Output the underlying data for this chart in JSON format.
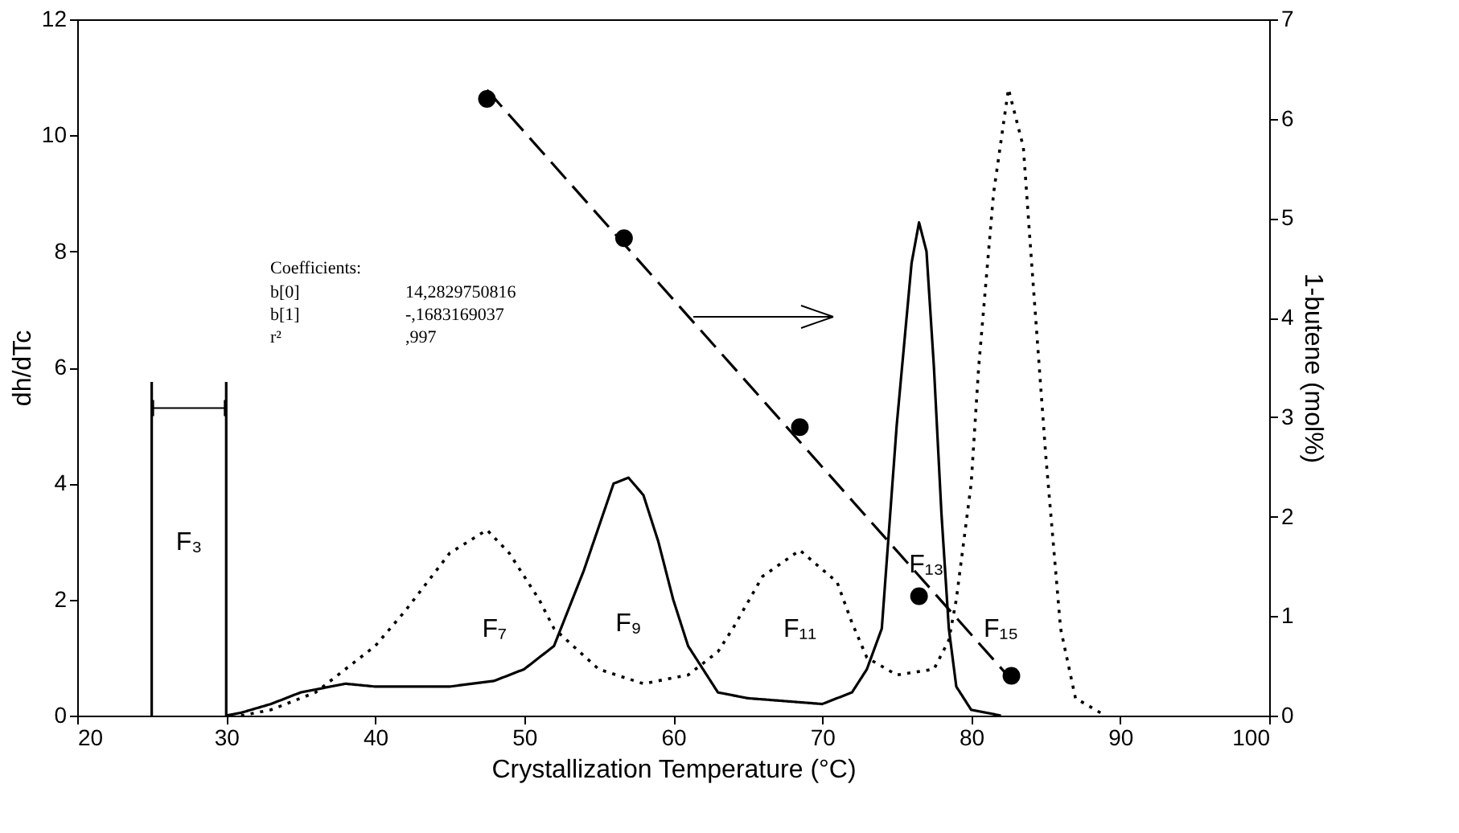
{
  "chart_data": {
    "type": "line",
    "xlabel": "Crystallization Temperature (°C)",
    "ylabel": "dh/dTc",
    "y2label": "1-butene (mol%)",
    "xlim": [
      20,
      100
    ],
    "xticks": [
      20,
      30,
      40,
      50,
      60,
      70,
      80,
      90,
      100
    ],
    "ylim": [
      0,
      12
    ],
    "yticks": [
      0,
      2,
      4,
      6,
      8,
      10,
      12
    ],
    "y2lim": [
      0,
      7
    ],
    "y2ticks": [
      0,
      1,
      2,
      3,
      4,
      5,
      6,
      7
    ],
    "grid": false,
    "series": [
      {
        "color": "#000000",
        "line_style": "solid",
        "marker": "none",
        "x": [
          25,
          25,
          null,
          30,
          30,
          31,
          33,
          35,
          38,
          40,
          45,
          48,
          50,
          52,
          54,
          56,
          57,
          58,
          59,
          60,
          61,
          63,
          65,
          70,
          72,
          73,
          74,
          75,
          76,
          76.5,
          77,
          77.5,
          78,
          78.5,
          79,
          80,
          82
        ],
        "values": [
          0,
          5.75,
          null,
          5.75,
          0,
          0.05,
          0.2,
          0.4,
          0.55,
          0.5,
          0.5,
          0.6,
          0.8,
          1.2,
          2.5,
          4.0,
          4.1,
          3.8,
          3.0,
          2.0,
          1.2,
          0.4,
          0.3,
          0.2,
          0.4,
          0.8,
          1.5,
          5.0,
          7.8,
          8.5,
          8.0,
          6.0,
          3.5,
          1.5,
          0.5,
          0.1,
          0
        ]
      },
      {
        "color": "#000000",
        "line_style": "dotted",
        "marker": "none",
        "x": [
          31,
          33,
          36,
          38,
          40,
          42,
          45,
          47.5,
          49,
          51,
          52,
          55,
          58,
          61,
          63,
          64,
          66,
          68.5,
          71,
          72,
          73,
          75,
          77.5,
          78.5,
          79,
          80,
          80.5,
          81.5,
          82.5,
          83.5,
          84,
          85,
          85.5,
          86,
          87,
          89
        ],
        "values": [
          0,
          0.1,
          0.4,
          0.8,
          1.2,
          1.8,
          2.8,
          3.2,
          2.8,
          2.0,
          1.5,
          0.8,
          0.55,
          0.7,
          1.1,
          1.5,
          2.4,
          2.85,
          2.3,
          1.6,
          1.0,
          0.7,
          0.8,
          1.3,
          2.0,
          4.0,
          6.0,
          9.0,
          10.8,
          9.8,
          8.0,
          4.5,
          3.0,
          1.5,
          0.3,
          0
        ]
      },
      {
        "type": "scatter",
        "axis": "y2",
        "color": "#000000",
        "marker": "circle",
        "x": [
          47.5,
          56.7,
          68.5,
          76.5,
          82.7
        ],
        "values": [
          6.2,
          4.8,
          2.9,
          1.2,
          0.4
        ]
      },
      {
        "type": "line",
        "axis": "y2",
        "color": "#000000",
        "line_style": "dashed",
        "marker": "none",
        "x": [
          47.5,
          83
        ],
        "values": [
          6.29,
          0.31
        ]
      }
    ],
    "annotations": [
      "F₃",
      "F₇",
      "F₉",
      "F₁₁",
      "F₁₃",
      "F₁₅",
      "Coefficients:",
      "b[0]",
      "14,2829750816",
      "b[1]",
      "-,1683169037",
      "r²",
      ",997"
    ]
  }
}
